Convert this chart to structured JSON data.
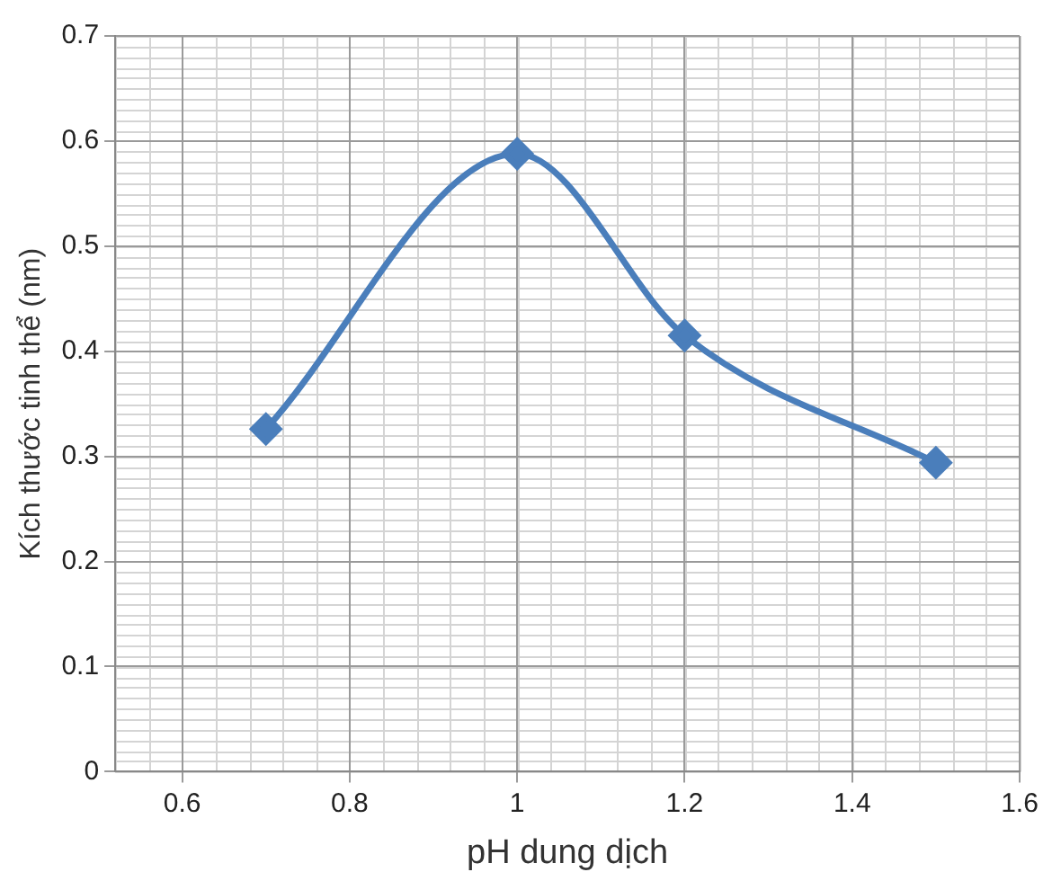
{
  "chart_data": {
    "type": "line",
    "xlabel": "pH dung dịch",
    "ylabel": "Kích thước tinh thể (nm)",
    "x": [
      0.7,
      1,
      1.2,
      1.5
    ],
    "values": [
      0.326,
      0.588,
      0.415,
      0.294
    ],
    "color": "#4a7ebb",
    "xlim": [
      0.52,
      1.6
    ],
    "xticks": [
      0.6,
      0.8,
      1,
      1.2,
      1.4,
      1.6
    ],
    "ylim": [
      0,
      0.7
    ],
    "yticks": [
      0,
      0.1,
      0.2,
      0.3,
      0.4,
      0.5,
      0.6,
      0.7
    ],
    "grid": true,
    "marker": "diamond",
    "line_style": "solid",
    "legend": false
  }
}
